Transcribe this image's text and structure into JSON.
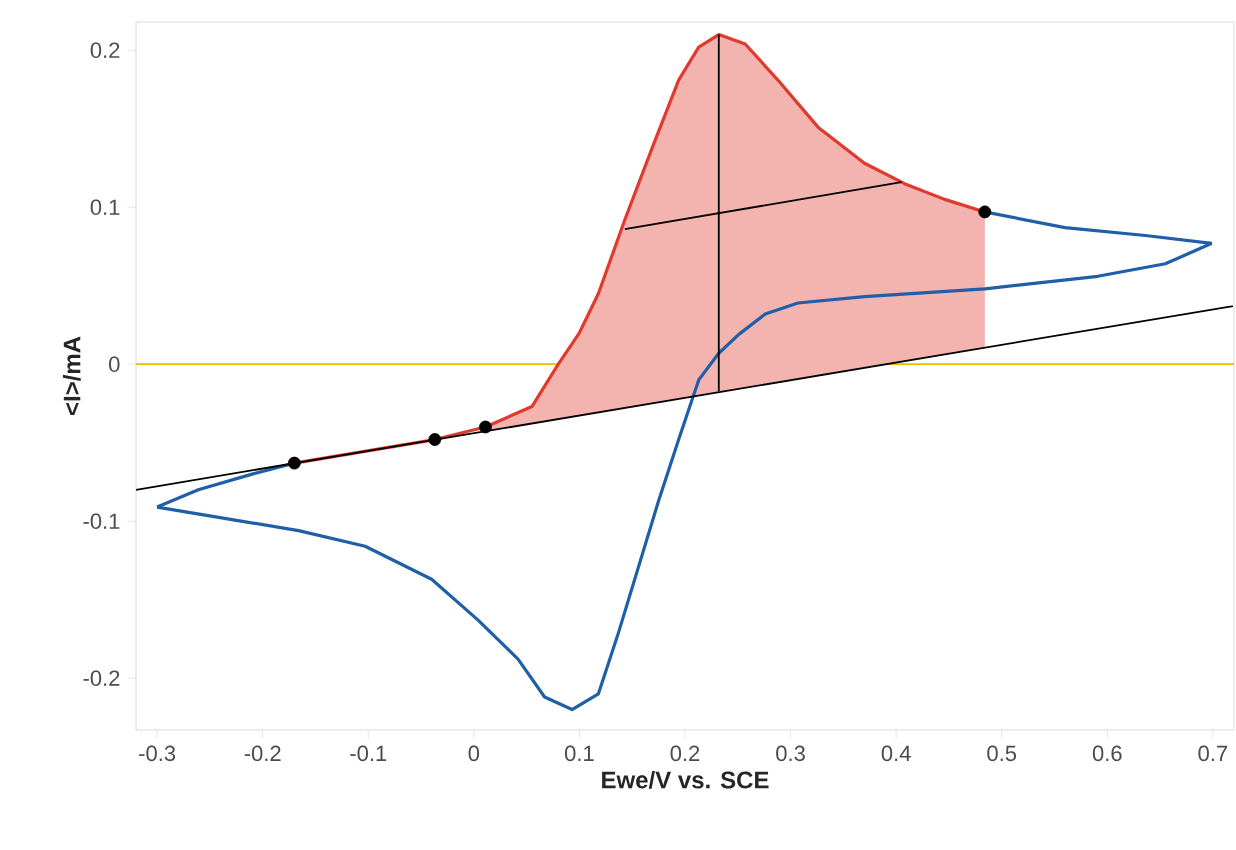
{
  "chart_data": {
    "type": "line",
    "xlabel": "Ewe/V vs. SCE",
    "ylabel": "<I>/mA",
    "xlim": [
      -0.32,
      0.72
    ],
    "ylim": [
      -0.233,
      0.218
    ],
    "xticks": [
      -0.3,
      -0.2,
      -0.1,
      0,
      0.1,
      0.2,
      0.3,
      0.4,
      0.5,
      0.6,
      0.7
    ],
    "yticks": [
      -0.2,
      -0.1,
      0,
      0.1,
      0.2
    ],
    "ref_lines": [
      {
        "axis": "y",
        "value": 0,
        "color": "#f5b800"
      }
    ],
    "series": [
      {
        "color": "#1f5fa8",
        "x": [
          -0.3,
          -0.261,
          -0.21,
          -0.17
        ],
        "values": [
          -0.091,
          -0.08,
          -0.07,
          -0.063
        ]
      },
      {
        "color": "#e03a2e",
        "x": [
          -0.17,
          -0.037,
          0.011,
          0.055,
          0.08,
          0.1,
          0.118,
          0.143,
          0.169,
          0.194,
          0.213,
          0.232,
          0.257,
          0.288,
          0.326,
          0.37,
          0.408,
          0.446,
          0.484
        ],
        "values": [
          -0.063,
          -0.048,
          -0.04,
          -0.027,
          0.0,
          0.02,
          0.045,
          0.092,
          0.138,
          0.181,
          0.202,
          0.21,
          0.204,
          0.181,
          0.151,
          0.128,
          0.115,
          0.105,
          0.097
        ],
        "upper": [
          null,
          null,
          -0.04,
          -0.027,
          0.0,
          0.02,
          0.045,
          0.092,
          0.138,
          0.181,
          0.202,
          0.21,
          0.204,
          0.181,
          0.151,
          0.128,
          0.115,
          0.105,
          0.097
        ],
        "lower": [
          null,
          null,
          -0.043,
          -0.038,
          -0.035,
          -0.033,
          -0.031,
          -0.028,
          -0.025,
          -0.022,
          -0.02,
          -0.018,
          -0.015,
          -0.011,
          -0.007,
          -0.002,
          0.002,
          0.006,
          0.011
        ]
      },
      {
        "color": "#1f5fa8",
        "x": [
          0.484,
          0.56,
          0.636,
          0.699
        ],
        "values": [
          0.097,
          0.087,
          0.082,
          0.077
        ]
      },
      {
        "color": "#1f5fa8",
        "x": [
          0.699,
          0.655,
          0.591,
          0.484,
          0.37,
          0.307,
          0.276,
          0.251,
          0.232,
          0.213,
          0.194,
          0.175,
          0.156,
          0.137,
          0.118,
          0.093,
          0.067,
          0.042,
          0.004,
          -0.04,
          -0.103,
          -0.166,
          -0.229,
          -0.3
        ],
        "values": [
          0.077,
          0.064,
          0.056,
          0.048,
          0.043,
          0.039,
          0.032,
          0.019,
          0.007,
          -0.01,
          -0.048,
          -0.087,
          -0.129,
          -0.171,
          -0.21,
          -0.22,
          -0.212,
          -0.188,
          -0.163,
          -0.137,
          -0.116,
          -0.106,
          -0.099,
          -0.091
        ]
      },
      {
        "color": "#000000",
        "x": [
          -0.32,
          0.719
        ],
        "values": [
          -0.08,
          0.037
        ]
      },
      {
        "color": "#000000",
        "x": [
          0.232,
          0.232
        ],
        "values": [
          0.21,
          -0.017
        ]
      },
      {
        "color": "#000000",
        "x": [
          0.143,
          0.405
        ],
        "values": [
          0.086,
          0.116
        ]
      },
      {
        "type": "scatter",
        "color": "#000000",
        "marker": "circle",
        "x": [
          -0.17,
          -0.037,
          0.011,
          0.484
        ],
        "values": [
          -0.063,
          -0.048,
          -0.04,
          0.097
        ]
      }
    ]
  }
}
